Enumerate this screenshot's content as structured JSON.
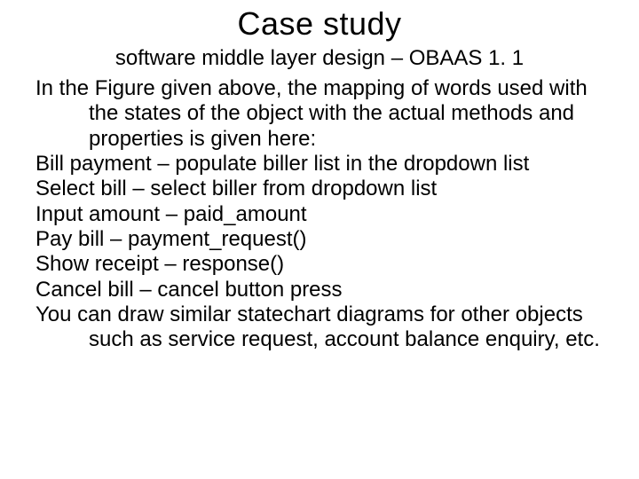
{
  "title": "Case study",
  "subtitle": "software middle layer design – OBAAS 1. 1",
  "paragraphs": [
    "In the Figure given above, the mapping of words used with the states of the object with the actual methods and properties is given here:",
    "Bill payment – populate biller list in the dropdown list",
    "Select bill – select biller from dropdown list",
    "Input amount – paid_amount",
    "Pay bill – payment_request()",
    "Show receipt – response()",
    "Cancel bill – cancel button press",
    "You can draw similar statechart diagrams for other objects such as service request, account balance enquiry, etc."
  ]
}
